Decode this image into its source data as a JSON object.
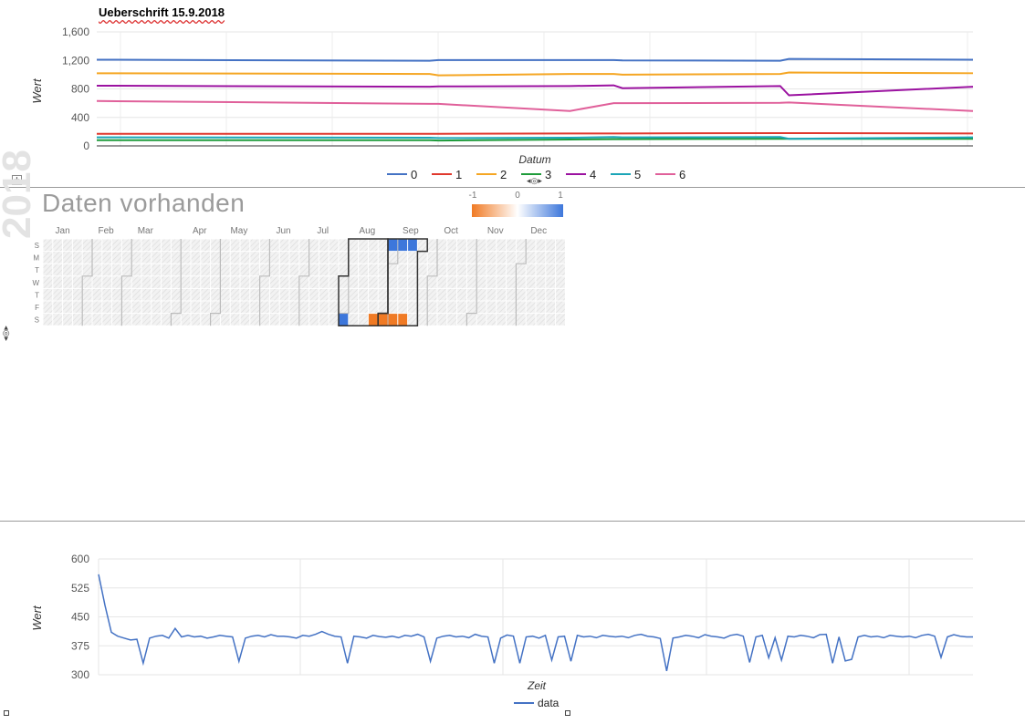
{
  "chart_data": [
    {
      "type": "line",
      "title": "Ueberschrift 15.9.2018",
      "xlabel": "Datum",
      "ylabel": "Wert",
      "ylim": [
        0,
        1600
      ],
      "yticks": [
        "0",
        "400",
        "800",
        "1,200",
        "1,600"
      ],
      "grid": true,
      "legend": "bottom",
      "x": [
        0,
        0.38,
        0.39,
        0.54,
        0.59,
        0.6,
        0.78,
        0.79,
        1
      ],
      "series": [
        {
          "name": "0",
          "color": "#4472c4",
          "values": [
            1210,
            1195,
            1205,
            1205,
            1205,
            1200,
            1195,
            1220,
            1210
          ]
        },
        {
          "name": "1",
          "color": "#e0382d",
          "values": [
            170,
            170,
            170,
            175,
            175,
            175,
            180,
            180,
            175
          ]
        },
        {
          "name": "2",
          "color": "#f5a623",
          "values": [
            1020,
            1010,
            990,
            1010,
            1010,
            1000,
            1010,
            1030,
            1020
          ]
        },
        {
          "name": "3",
          "color": "#1e9b3a",
          "values": [
            80,
            80,
            75,
            90,
            95,
            95,
            100,
            100,
            100
          ]
        },
        {
          "name": "4",
          "color": "#9b12a0",
          "values": [
            845,
            830,
            835,
            840,
            850,
            810,
            840,
            710,
            830
          ]
        },
        {
          "name": "5",
          "color": "#1ba5b7",
          "values": [
            120,
            115,
            110,
            115,
            125,
            120,
            125,
            100,
            120
          ]
        },
        {
          "name": "6",
          "color": "#e0609a",
          "values": [
            630,
            590,
            590,
            490,
            600,
            600,
            605,
            610,
            490
          ]
        }
      ]
    },
    {
      "type": "heatmap",
      "title": "Daten vorhanden",
      "year": "2018",
      "months": [
        "Jan",
        "Feb",
        "Mar",
        "Apr",
        "May",
        "Jun",
        "Jul",
        "Aug",
        "Sep",
        "Oct",
        "Nov",
        "Dec"
      ],
      "weekdays": [
        "S",
        "M",
        "T",
        "W",
        "T",
        "F",
        "S"
      ],
      "colorbar_ticks": [
        "-1",
        "0",
        "1"
      ],
      "colorbar_low": "#f07a24",
      "colorbar_high": "#3d77db",
      "cells": [
        {
          "week": 30,
          "day": 6,
          "value": 1
        },
        {
          "week": 33,
          "day": 6,
          "value": -1
        },
        {
          "week": 34,
          "day": 6,
          "value": -1
        },
        {
          "week": 35,
          "day": 6,
          "value": -1
        },
        {
          "week": 36,
          "day": 6,
          "value": -1
        },
        {
          "week": 35,
          "day": 0,
          "value": 1
        },
        {
          "week": 36,
          "day": 0,
          "value": 1
        },
        {
          "week": 37,
          "day": 0,
          "value": 1
        }
      ]
    },
    {
      "type": "line",
      "xlabel": "Zeit",
      "ylabel": "Wert",
      "ylim": [
        300,
        600
      ],
      "yticks": [
        "300",
        "375",
        "450",
        "525",
        "600"
      ],
      "grid": true,
      "legend": "bottom",
      "series": [
        {
          "name": "data",
          "color": "#4472c4",
          "values": [
            560,
            480,
            410,
            400,
            395,
            390,
            392,
            330,
            395,
            400,
            402,
            395,
            420,
            398,
            402,
            398,
            400,
            395,
            398,
            402,
            400,
            398,
            335,
            395,
            400,
            402,
            398,
            404,
            400,
            400,
            398,
            395,
            402,
            400,
            405,
            412,
            405,
            400,
            398,
            330,
            400,
            398,
            395,
            402,
            399,
            397,
            400,
            396,
            402,
            400,
            405,
            398,
            335,
            395,
            400,
            402,
            398,
            400,
            396,
            405,
            400,
            398,
            330,
            395,
            403,
            400,
            330,
            398,
            400,
            395,
            402,
            338,
            398,
            400,
            335,
            402,
            398,
            400,
            396,
            402,
            400,
            398,
            400,
            396,
            402,
            405,
            400,
            398,
            394,
            310,
            395,
            398,
            402,
            400,
            396,
            404,
            400,
            398,
            395,
            402,
            405,
            400,
            332,
            398,
            402,
            344,
            396,
            338,
            400,
            398,
            402,
            400,
            396,
            404,
            405,
            330,
            398,
            336,
            340,
            398,
            402,
            398,
            400,
            396,
            402,
            400,
            398,
            400,
            396,
            402,
            405,
            400,
            345,
            398,
            404,
            400,
            398,
            398
          ]
        }
      ]
    }
  ],
  "ui": {
    "move_handle": "✢",
    "speaker_glyph": "◂◎▸"
  }
}
